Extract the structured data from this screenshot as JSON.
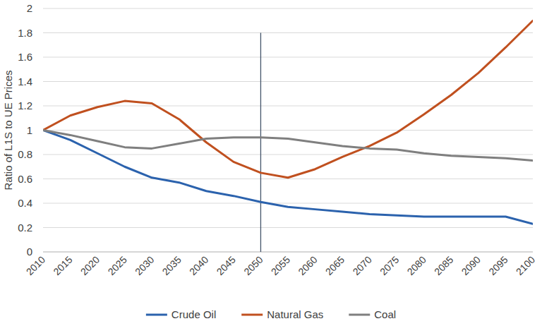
{
  "chart_data": {
    "type": "line",
    "y_label": "Ratio of L1S to UE Prices",
    "categories": [
      "2010",
      "2015",
      "2020",
      "2025",
      "2030",
      "2035",
      "2040",
      "2045",
      "2050",
      "2055",
      "2060",
      "2065",
      "2070",
      "2075",
      "2080",
      "2085",
      "2090",
      "2095",
      "2100"
    ],
    "series": [
      {
        "name": "Crude Oil",
        "color": "#2b62ad",
        "values": [
          1.0,
          0.92,
          0.81,
          0.7,
          0.61,
          0.57,
          0.5,
          0.46,
          0.41,
          0.37,
          0.35,
          0.33,
          0.31,
          0.3,
          0.29,
          0.29,
          0.29,
          0.29,
          0.23
        ]
      },
      {
        "name": "Natural Gas",
        "color": "#c0501f",
        "values": [
          1.0,
          1.12,
          1.19,
          1.24,
          1.22,
          1.09,
          0.9,
          0.74,
          0.65,
          0.61,
          0.68,
          0.78,
          0.87,
          0.98,
          1.13,
          1.29,
          1.47,
          1.68,
          1.9
        ]
      },
      {
        "name": "Coal",
        "color": "#7f7f7f",
        "values": [
          1.0,
          0.96,
          0.91,
          0.86,
          0.85,
          0.89,
          0.93,
          0.94,
          0.94,
          0.93,
          0.9,
          0.87,
          0.85,
          0.84,
          0.81,
          0.79,
          0.78,
          0.77,
          0.75
        ]
      }
    ],
    "vlines": [
      {
        "x": "2050",
        "ymin": 0,
        "ymax": 1.8,
        "color": "#44546a"
      }
    ],
    "ylim": [
      0,
      2
    ],
    "yticks": [
      0,
      {
        "value": 0.2,
        "label": "0.2"
      },
      {
        "value": 0.4,
        "label": "0.4"
      },
      {
        "value": 0.6,
        "label": "0.6"
      },
      {
        "value": 0.8,
        "label": "0.8"
      },
      1,
      {
        "value": 1.2,
        "label": "1.2"
      },
      {
        "value": 1.4,
        "label": "1.4"
      },
      {
        "value": 1.6,
        "label": "1.6"
      },
      {
        "value": 1.8,
        "label": "1.8"
      },
      2
    ],
    "grid": true,
    "legend": "bottom"
  }
}
